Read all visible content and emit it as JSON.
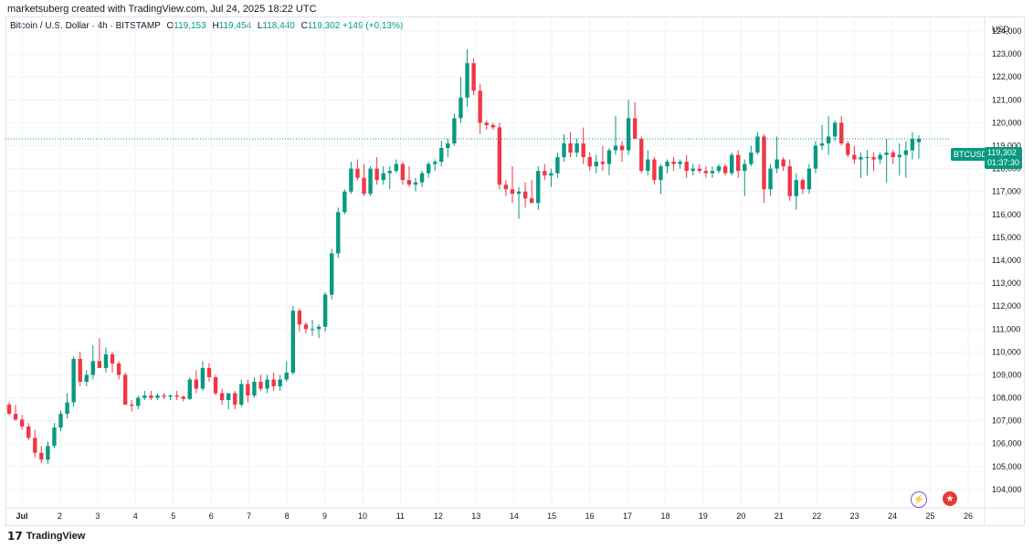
{
  "header": {
    "created_by": "marketsuberg created with TradingView.com, Jul 24, 2025 18:22 UTC"
  },
  "legend": {
    "symbol": "Bitcoin / U.S. Dollar · 4h · BITSTAMP",
    "open_label": "O",
    "open": "119,153",
    "high_label": "H",
    "high": "119,454",
    "low_label": "L",
    "low": "118,440",
    "close_label": "C",
    "close": "119,302",
    "change": "+149 (+0.13%)"
  },
  "price_axis": {
    "currency": "USD"
  },
  "badges": {
    "symbol": "BTCUSD",
    "last_price": "119,302",
    "countdown": "01:37:30"
  },
  "footer": {
    "brand": "TradingView"
  },
  "colors": {
    "up": "#089981",
    "down": "#f23645",
    "grid": "#f0f3fa",
    "axis_text": "#131722"
  },
  "chart_data": {
    "type": "candlestick",
    "symbol": "BTCUSD",
    "timeframe": "4h",
    "exchange": "BITSTAMP",
    "ylim": [
      103200,
      124600
    ],
    "y_ticks": [
      104000,
      105000,
      106000,
      107000,
      108000,
      109000,
      110000,
      111000,
      112000,
      113000,
      114000,
      115000,
      116000,
      117000,
      118000,
      119000,
      120000,
      121000,
      122000,
      123000,
      124000
    ],
    "y_tick_labels": [
      "104,000",
      "105,000",
      "106,000",
      "107,000",
      "108,000",
      "109,000",
      "110,000",
      "111,000",
      "112,000",
      "113,000",
      "114,000",
      "115,000",
      "116,000",
      "117,000",
      "118,000",
      "119,000",
      "120,000",
      "121,000",
      "122,000",
      "123,000",
      "124,000"
    ],
    "x_tick_labels": [
      "Jul",
      "2",
      "3",
      "4",
      "5",
      "6",
      "7",
      "8",
      "9",
      "10",
      "11",
      "12",
      "13",
      "14",
      "15",
      "16",
      "17",
      "18",
      "19",
      "20",
      "21",
      "22",
      "23",
      "24",
      "25",
      "26"
    ],
    "last_price": 119302,
    "candles": [
      [
        107700,
        107800,
        107250,
        107300
      ],
      [
        107300,
        107700,
        107000,
        107050
      ],
      [
        107050,
        107250,
        106600,
        106750
      ],
      [
        106750,
        106900,
        106150,
        106250
      ],
      [
        106250,
        106600,
        105400,
        105600
      ],
      [
        105600,
        105900,
        105150,
        105300
      ],
      [
        105300,
        106100,
        105100,
        105900
      ],
      [
        105900,
        106900,
        105800,
        106700
      ],
      [
        106700,
        107450,
        106550,
        107300
      ],
      [
        107300,
        108200,
        107100,
        107800
      ],
      [
        107800,
        109800,
        107600,
        109700
      ],
      [
        109700,
        110000,
        108500,
        108700
      ],
      [
        108700,
        109200,
        108500,
        109000
      ],
      [
        109000,
        110300,
        108800,
        109600
      ],
      [
        109600,
        110600,
        109300,
        109300
      ],
      [
        109300,
        110200,
        109100,
        109900
      ],
      [
        109900,
        110000,
        109100,
        109500
      ],
      [
        109500,
        109600,
        108800,
        109000
      ],
      [
        109000,
        109100,
        107900,
        107700
      ],
      [
        107700,
        107900,
        107400,
        107650
      ],
      [
        107650,
        108100,
        107500,
        108000
      ],
      [
        108000,
        108300,
        107900,
        108100
      ],
      [
        108100,
        108300,
        107900,
        108000
      ],
      [
        108000,
        108200,
        107900,
        108100
      ],
      [
        108100,
        108200,
        107950,
        108050
      ],
      [
        108050,
        108150,
        107900,
        108100
      ],
      [
        108100,
        108300,
        107900,
        108050
      ],
      [
        108050,
        108100,
        107850,
        107950
      ],
      [
        107950,
        108900,
        107900,
        108800
      ],
      [
        108800,
        109200,
        108200,
        108400
      ],
      [
        108400,
        109600,
        108300,
        109300
      ],
      [
        109300,
        109500,
        108700,
        108900
      ],
      [
        108900,
        109000,
        108100,
        108200
      ],
      [
        108200,
        108400,
        107700,
        107900
      ],
      [
        107900,
        108100,
        107500,
        108200
      ],
      [
        108200,
        108300,
        107500,
        107700
      ],
      [
        107700,
        108800,
        107600,
        108600
      ],
      [
        108600,
        108800,
        107800,
        108100
      ],
      [
        108100,
        108900,
        108000,
        108700
      ],
      [
        108700,
        109000,
        108300,
        108400
      ],
      [
        108400,
        109000,
        108200,
        108800
      ],
      [
        108800,
        109100,
        108300,
        108500
      ],
      [
        108500,
        109000,
        108300,
        108800
      ],
      [
        108800,
        109600,
        108700,
        109100
      ],
      [
        109100,
        112000,
        109000,
        111800
      ],
      [
        111800,
        111900,
        110900,
        111200
      ],
      [
        111200,
        111300,
        110800,
        111000
      ],
      [
        111000,
        111400,
        110700,
        111000
      ],
      [
        111000,
        111200,
        110600,
        111100
      ],
      [
        111100,
        112600,
        110900,
        112500
      ],
      [
        112500,
        114500,
        112300,
        114300
      ],
      [
        114300,
        116300,
        114100,
        116100
      ],
      [
        116100,
        117100,
        116000,
        117000
      ],
      [
        117000,
        118300,
        116900,
        118000
      ],
      [
        118000,
        118400,
        117500,
        117600
      ],
      [
        117600,
        118200,
        116800,
        116900
      ],
      [
        116900,
        118100,
        116800,
        118000
      ],
      [
        118000,
        118500,
        117300,
        117500
      ],
      [
        117500,
        118100,
        117300,
        117800
      ],
      [
        117800,
        118100,
        117100,
        117900
      ],
      [
        117900,
        118400,
        117800,
        118200
      ],
      [
        118200,
        118300,
        117300,
        117500
      ],
      [
        117500,
        118100,
        117200,
        117300
      ],
      [
        117300,
        117600,
        117000,
        117400
      ],
      [
        117400,
        117900,
        117200,
        117800
      ],
      [
        117800,
        118300,
        117600,
        118200
      ],
      [
        118200,
        118400,
        117900,
        118300
      ],
      [
        118300,
        119200,
        118100,
        118900
      ],
      [
        118900,
        119300,
        118500,
        119100
      ],
      [
        119100,
        120400,
        119000,
        120200
      ],
      [
        120200,
        122000,
        120000,
        121100
      ],
      [
        121100,
        123200,
        120700,
        122600
      ],
      [
        122600,
        122800,
        121200,
        121400
      ],
      [
        121400,
        121700,
        119500,
        120000
      ],
      [
        120000,
        120100,
        119700,
        119900
      ],
      [
        119900,
        120000,
        119700,
        119800
      ],
      [
        119800,
        120000,
        117100,
        117300
      ],
      [
        117300,
        117500,
        116800,
        117100
      ],
      [
        117100,
        118100,
        116500,
        116900
      ],
      [
        116900,
        117200,
        115800,
        117000
      ],
      [
        117000,
        117400,
        116300,
        116700
      ],
      [
        116700,
        117500,
        116500,
        116500
      ],
      [
        116500,
        118100,
        116200,
        117900
      ],
      [
        117900,
        118200,
        117500,
        117700
      ],
      [
        117700,
        118000,
        117200,
        117800
      ],
      [
        117800,
        118700,
        117600,
        118500
      ],
      [
        118500,
        119500,
        118300,
        119100
      ],
      [
        119100,
        119600,
        118500,
        118700
      ],
      [
        118700,
        119300,
        118500,
        119100
      ],
      [
        119100,
        119800,
        118200,
        118500
      ],
      [
        118500,
        118700,
        117900,
        118100
      ],
      [
        118100,
        118600,
        117800,
        118300
      ],
      [
        118300,
        119000,
        117900,
        118200
      ],
      [
        118200,
        118900,
        117700,
        118800
      ],
      [
        118800,
        120300,
        118600,
        119000
      ],
      [
        119000,
        119200,
        118300,
        118800
      ],
      [
        118800,
        121000,
        118600,
        120200
      ],
      [
        120200,
        120900,
        119500,
        119300
      ],
      [
        119300,
        119400,
        117800,
        117900
      ],
      [
        117900,
        118800,
        117700,
        118400
      ],
      [
        118400,
        118500,
        117300,
        117500
      ],
      [
        117500,
        118200,
        116900,
        118100
      ],
      [
        118100,
        118400,
        117800,
        118300
      ],
      [
        118300,
        118500,
        117900,
        118200
      ],
      [
        118200,
        118400,
        118000,
        118300
      ],
      [
        118300,
        118600,
        117600,
        117900
      ],
      [
        117900,
        118200,
        117700,
        118000
      ],
      [
        118000,
        118200,
        117800,
        117900
      ],
      [
        117900,
        118100,
        117600,
        117800
      ],
      [
        117800,
        118100,
        117600,
        117900
      ],
      [
        117900,
        118200,
        117800,
        118100
      ],
      [
        118100,
        118200,
        117700,
        117800
      ],
      [
        117800,
        118700,
        117700,
        118600
      ],
      [
        118600,
        118800,
        117600,
        117900
      ],
      [
        117900,
        118400,
        116800,
        118200
      ],
      [
        118200,
        119000,
        118100,
        118700
      ],
      [
        118700,
        119600,
        118600,
        119400
      ],
      [
        119400,
        119500,
        116500,
        117100
      ],
      [
        117100,
        118200,
        116800,
        118000
      ],
      [
        118000,
        119400,
        117800,
        118400
      ],
      [
        118400,
        118500,
        117900,
        118100
      ],
      [
        118100,
        118400,
        116600,
        116800
      ],
      [
        116800,
        117800,
        116200,
        117500
      ],
      [
        117500,
        117600,
        116900,
        117100
      ],
      [
        117100,
        118200,
        116900,
        118000
      ],
      [
        118000,
        119200,
        117800,
        119000
      ],
      [
        119000,
        119900,
        118800,
        119100
      ],
      [
        119100,
        120300,
        118600,
        119400
      ],
      [
        119400,
        120100,
        119200,
        120000
      ],
      [
        120000,
        120300,
        119000,
        119100
      ],
      [
        119100,
        119200,
        118500,
        118600
      ],
      [
        118600,
        119000,
        118200,
        118400
      ],
      [
        118400,
        118700,
        117600,
        118500
      ],
      [
        118500,
        118800,
        117700,
        118500
      ],
      [
        118500,
        118700,
        117900,
        118400
      ],
      [
        118400,
        118700,
        118200,
        118600
      ],
      [
        118600,
        119300,
        117400,
        118700
      ],
      [
        118700,
        118800,
        118200,
        118500
      ],
      [
        118500,
        119100,
        117700,
        118600
      ],
      [
        118600,
        119200,
        117600,
        118800
      ],
      [
        118800,
        119600,
        118400,
        119300
      ],
      [
        119153,
        119454,
        118440,
        119302
      ]
    ]
  }
}
